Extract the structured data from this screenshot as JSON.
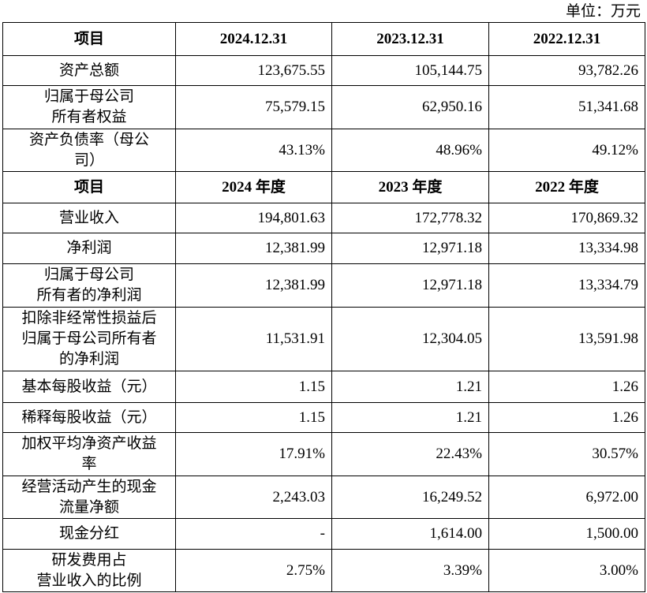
{
  "unit": "单位：万元",
  "table": {
    "rows": [
      [
        "项目",
        "2024.12.31",
        "2023.12.31",
        "2022.12.31"
      ],
      [
        "资产总额",
        "123,675.55",
        "105,144.75",
        "93,782.26"
      ],
      [
        "归属于母公司\n所有者权益",
        "75,579.15",
        "62,950.16",
        "51,341.68"
      ],
      [
        "资产负债率（母公\n司）",
        "43.13%",
        "48.96%",
        "49.12%"
      ],
      [
        "项目",
        "2024 年度",
        "2023 年度",
        "2022 年度"
      ],
      [
        "营业收入",
        "194,801.63",
        "172,778.32",
        "170,869.32"
      ],
      [
        "净利润",
        "12,381.99",
        "12,971.18",
        "13,334.98"
      ],
      [
        "归属于母公司\n所有者的净利润",
        "12,381.99",
        "12,971.18",
        "13,334.79"
      ],
      [
        "扣除非经常性损益后\n归属于母公司所有者\n的净利润",
        "11,531.91",
        "12,304.05",
        "13,591.98"
      ],
      [
        "基本每股收益（元）",
        "1.15",
        "1.21",
        "1.26"
      ],
      [
        "稀释每股收益（元）",
        "1.15",
        "1.21",
        "1.26"
      ],
      [
        "加权平均净资产收益\n率",
        "17.91%",
        "22.43%",
        "30.57%"
      ],
      [
        "经营活动产生的现金\n流量净额",
        "2,243.03",
        "16,249.52",
        "6,972.00"
      ],
      [
        "现金分红",
        "-",
        "1,614.00",
        "1,500.00"
      ],
      [
        "研发费用占\n营业收入的比例",
        "2.75%",
        "3.39%",
        "3.00%"
      ]
    ]
  }
}
